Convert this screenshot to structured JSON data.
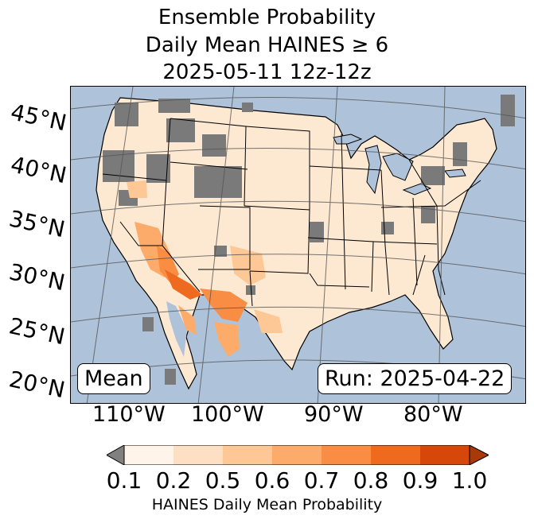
{
  "title": {
    "line1": "Ensemble Probability",
    "line2": "Daily Mean HAINES ≥ 6",
    "line3": "2025-05-11 12z-12z"
  },
  "map": {
    "lat_labels": [
      "45°N",
      "40°N",
      "35°N",
      "30°N",
      "25°N",
      "20°N"
    ],
    "lon_labels": [
      "110°W",
      "100°W",
      "90°W",
      "80°W"
    ],
    "stat_label": "Mean",
    "run_label": "Run: 2025-04-22",
    "ocean_color": "#aec3da",
    "missing_color": "#7a7a7a"
  },
  "colorbar": {
    "ticks": [
      "0.1",
      "0.2",
      "0.5",
      "0.6",
      "0.7",
      "0.8",
      "0.9",
      "1.0"
    ],
    "colors": [
      "#fff4e9",
      "#fde0c3",
      "#fdc896",
      "#fcab6b",
      "#f98d43",
      "#ed6a1e",
      "#d6480a"
    ],
    "under_color": "#808080",
    "over_color": "#a93906",
    "label": "HAINES Daily Mean Probability"
  }
}
